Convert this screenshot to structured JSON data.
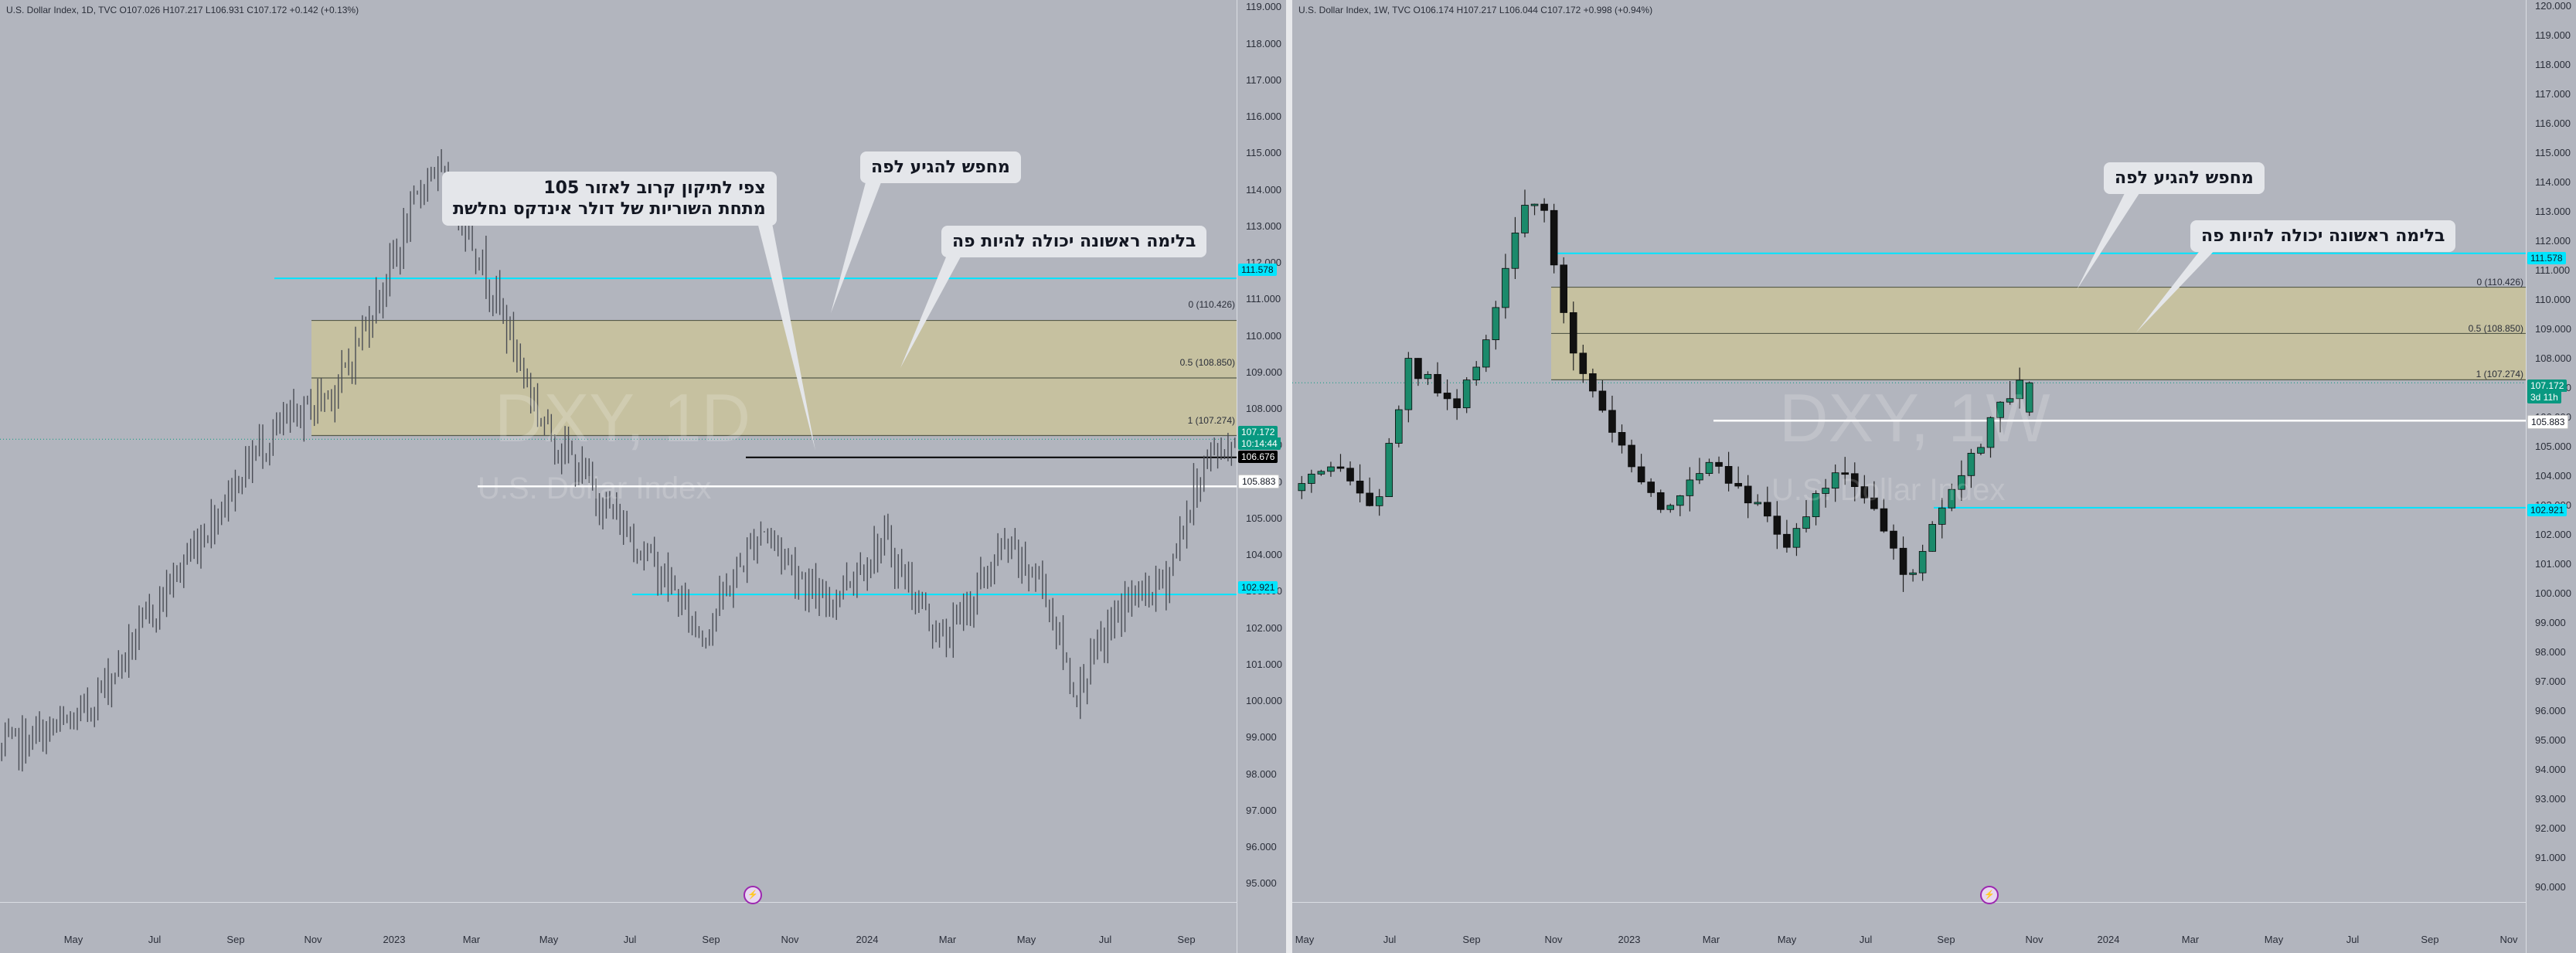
{
  "left": {
    "legend": "U.S. Dollar Index, 1D, TVC  O107.026  H107.217  L106.931  C107.172  +0.142 (+0.13%)",
    "watermark_symbol": "DXY, 1D",
    "watermark_name": "U.S. Dollar Index",
    "y_ticks": [
      "119.000",
      "118.000",
      "117.000",
      "116.000",
      "115.000",
      "114.000",
      "113.000",
      "112.000",
      "111.000",
      "110.000",
      "109.000",
      "108.000",
      "107.000",
      "106.000",
      "105.000",
      "104.000",
      "103.000",
      "102.000",
      "101.000",
      "100.000",
      "99.000",
      "98.000",
      "97.000",
      "96.000",
      "95.000"
    ],
    "x_ticks": [
      "May",
      "Jul",
      "Sep",
      "Nov",
      "2023",
      "Mar",
      "May",
      "Jul",
      "Sep",
      "Nov",
      "2024",
      "Mar",
      "May",
      "Jul",
      "Sep"
    ],
    "fib": [
      "0 (110.426)",
      "0.5 (108.850)",
      "1 (107.274)"
    ],
    "tags": {
      "cyan_top": "111.578",
      "price": "107.172",
      "countdown": "10:14:44",
      "black": "106.676",
      "white": "105.883",
      "cyan_bottom": "102.921"
    },
    "callout_main_line1": "צפי לתיקון  קרוב לאזור 105",
    "callout_main_line2": "מתחת השוריות של דולר אינדקס נחלשת",
    "callout_search": "מחפש להגיע לפה",
    "callout_first": "בלימה ראשונה יכולה להיות פה",
    "event_icon": "⚡"
  },
  "right": {
    "legend": "U.S. Dollar Index, 1W, TVC  O106.174  H107.217  L106.044  C107.172  +0.998 (+0.94%)",
    "watermark_symbol": "DXY, 1W",
    "watermark_name": "U.S. Dollar Index",
    "y_ticks": [
      "120.000",
      "119.000",
      "118.000",
      "117.000",
      "116.000",
      "115.000",
      "114.000",
      "113.000",
      "112.000",
      "111.000",
      "110.000",
      "109.000",
      "108.000",
      "107.000",
      "106.000",
      "105.000",
      "104.000",
      "103.000",
      "102.000",
      "101.000",
      "100.000",
      "99.000",
      "98.000",
      "97.000",
      "96.000",
      "95.000",
      "94.000",
      "93.000",
      "92.000",
      "91.000",
      "90.000"
    ],
    "x_ticks": [
      "May",
      "Jul",
      "Sep",
      "Nov",
      "2023",
      "Mar",
      "May",
      "Jul",
      "Sep",
      "Nov",
      "2024",
      "Mar",
      "May",
      "Jul",
      "Sep",
      "Nov"
    ],
    "fib": [
      "0 (110.426)",
      "0.5 (108.850)",
      "1 (107.274)"
    ],
    "tags": {
      "cyan_top": "111.578",
      "price": "107.172",
      "countdown": "3d 11h",
      "white": "105.883",
      "cyan_bottom": "102.921"
    },
    "callout_search": "מחפש להגיע לפה",
    "callout_first": "בלימה ראשונה יכולה להיות פה",
    "event_icon": "⚡"
  },
  "colors": {
    "background": "#b2b5be",
    "fib_zone": "#c9c39b",
    "cyan_line": "#00e5ff",
    "bull": "#1b8a6b",
    "bear": "#111111",
    "price_tag": "#089981"
  },
  "chart_data": [
    {
      "type": "candlestick",
      "timeframe": "1D",
      "title": "U.S. Dollar Index, 1D, TVC",
      "ohlc_last": {
        "open": 107.026,
        "high": 107.217,
        "low": 106.931,
        "close": 107.172
      },
      "path": [
        [
          0,
          98.6
        ],
        [
          0.04,
          99.5
        ],
        [
          0.06,
          101
        ],
        [
          0.09,
          103.6
        ],
        [
          0.13,
          107
        ],
        [
          0.17,
          108.7
        ],
        [
          0.2,
          112.5
        ],
        [
          0.215,
          114.7
        ],
        [
          0.23,
          113.4
        ],
        [
          0.25,
          110.7
        ],
        [
          0.27,
          107.7
        ],
        [
          0.3,
          105.5
        ],
        [
          0.33,
          103.5
        ],
        [
          0.35,
          101.8
        ],
        [
          0.38,
          104.8
        ],
        [
          0.41,
          102.6
        ],
        [
          0.44,
          104.4
        ],
        [
          0.47,
          101.6
        ],
        [
          0.5,
          104.2
        ],
        [
          0.52,
          103.2
        ],
        [
          0.535,
          100.2
        ],
        [
          0.56,
          102.7
        ],
        [
          0.58,
          103.2
        ],
        [
          0.6,
          106.6
        ],
        [
          0.615,
          107.1
        ]
      ],
      "levels": {
        "cyan_top": 111.578,
        "fib_0": 110.426,
        "fib_0_5": 108.85,
        "fib_1": 107.274,
        "price": 107.172,
        "black": 106.676,
        "white": 105.883,
        "cyan_bottom": 102.921
      },
      "ylim": [
        94.5,
        119.2
      ]
    },
    {
      "type": "candlestick",
      "timeframe": "1W",
      "title": "U.S. Dollar Index, 1W, TVC",
      "ohlc_last": {
        "open": 106.174,
        "high": 107.217,
        "low": 106.044,
        "close": 107.172
      },
      "path": [
        [
          0,
          103.5
        ],
        [
          0.03,
          104.2
        ],
        [
          0.05,
          102.7
        ],
        [
          0.07,
          107.8
        ],
        [
          0.1,
          106.2
        ],
        [
          0.12,
          109.2
        ],
        [
          0.14,
          113.4
        ],
        [
          0.155,
          112.6
        ],
        [
          0.16,
          110.2
        ],
        [
          0.17,
          108.3
        ],
        [
          0.2,
          104.8
        ],
        [
          0.225,
          102.6
        ],
        [
          0.25,
          104.7
        ],
        [
          0.27,
          103.7
        ],
        [
          0.3,
          101.7
        ],
        [
          0.33,
          104.4
        ],
        [
          0.35,
          103.2
        ],
        [
          0.37,
          100.3
        ],
        [
          0.39,
          102.6
        ],
        [
          0.41,
          104.5
        ],
        [
          0.43,
          106.6
        ],
        [
          0.445,
          107.2
        ]
      ],
      "levels": {
        "cyan_top": 111.578,
        "fib_0": 110.426,
        "fib_0_5": 108.85,
        "fib_1": 107.274,
        "price": 107.172,
        "white": 105.883,
        "cyan_bottom": 102.921
      },
      "ylim": [
        89.5,
        120.2
      ]
    }
  ]
}
